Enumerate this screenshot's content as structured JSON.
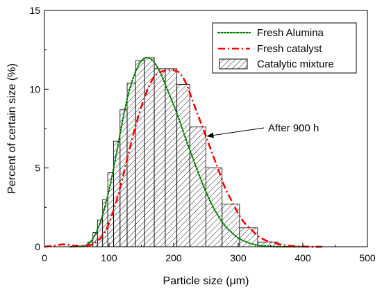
{
  "chart_data": {
    "type": "bar",
    "xlabel": "Particle size (μm)",
    "ylabel": "Percent of certain size (%)",
    "xlim": [
      0,
      500
    ],
    "ylim": [
      0,
      15
    ],
    "xticks": [
      0,
      100,
      200,
      300,
      400,
      500
    ],
    "yticks": [
      0,
      5,
      10,
      15
    ],
    "grid": false,
    "legend_position": "top-right",
    "bars": {
      "name": "Catalytic mixture",
      "pattern": "diagonal-hatch",
      "bins": [
        {
          "x0": 67,
          "x1": 75,
          "value": 0.3
        },
        {
          "x0": 75,
          "x1": 82,
          "value": 0.9
        },
        {
          "x0": 82,
          "x1": 90,
          "value": 1.7
        },
        {
          "x0": 90,
          "x1": 98,
          "value": 3.0
        },
        {
          "x0": 98,
          "x1": 107,
          "value": 4.7
        },
        {
          "x0": 107,
          "x1": 117,
          "value": 6.7
        },
        {
          "x0": 117,
          "x1": 128,
          "value": 8.7
        },
        {
          "x0": 128,
          "x1": 141,
          "value": 10.4
        },
        {
          "x0": 141,
          "x1": 155,
          "value": 11.8
        },
        {
          "x0": 155,
          "x1": 170,
          "value": 12.0
        },
        {
          "x0": 170,
          "x1": 187,
          "value": 11.3
        },
        {
          "x0": 187,
          "x1": 205,
          "value": 11.3
        },
        {
          "x0": 205,
          "x1": 225,
          "value": 10.3
        },
        {
          "x0": 225,
          "x1": 250,
          "value": 7.6
        },
        {
          "x0": 250,
          "x1": 275,
          "value": 5.0
        },
        {
          "x0": 275,
          "x1": 302,
          "value": 2.7
        },
        {
          "x0": 302,
          "x1": 330,
          "value": 1.2
        },
        {
          "x0": 330,
          "x1": 362,
          "value": 0.3
        }
      ]
    },
    "series": [
      {
        "name": "Fresh Alumina",
        "style": "dotted",
        "color": "#008000",
        "x": [
          40,
          60,
          70,
          80,
          90,
          100,
          110,
          120,
          130,
          140,
          150,
          160,
          170,
          180,
          190,
          200,
          210,
          220,
          230,
          240,
          250,
          260,
          270,
          280,
          290,
          300,
          310,
          320,
          330,
          340,
          350,
          360,
          370,
          380,
          390,
          400
        ],
        "y": [
          0.0,
          0.05,
          0.25,
          0.9,
          2.0,
          3.6,
          5.6,
          7.8,
          9.7,
          11.0,
          11.8,
          12.0,
          11.7,
          11.0,
          10.0,
          9.0,
          7.9,
          6.7,
          5.6,
          4.5,
          3.5,
          2.6,
          1.9,
          1.3,
          0.9,
          0.55,
          0.35,
          0.2,
          0.1,
          0.05,
          0.02,
          0.0,
          0.0,
          0.0,
          0.0,
          0.0
        ]
      },
      {
        "name": "Fresh catalyst",
        "style": "dash-dot",
        "color": "#ff0000",
        "x": [
          0,
          20,
          30,
          50,
          70,
          80,
          90,
          100,
          110,
          120,
          130,
          140,
          150,
          160,
          170,
          180,
          190,
          200,
          210,
          220,
          230,
          240,
          250,
          260,
          270,
          280,
          290,
          300,
          310,
          320,
          330,
          340,
          350,
          370,
          390,
          410,
          430
        ],
        "y": [
          0.0,
          0.1,
          0.15,
          0.05,
          0.1,
          0.3,
          0.7,
          1.5,
          2.7,
          4.2,
          5.9,
          7.5,
          8.9,
          10.0,
          10.8,
          11.1,
          11.2,
          11.2,
          11.0,
          10.3,
          9.2,
          8.1,
          7.0,
          5.9,
          4.8,
          3.7,
          2.9,
          2.1,
          1.5,
          1.1,
          0.7,
          0.45,
          0.3,
          0.1,
          0.03,
          0.0,
          0.0
        ]
      }
    ],
    "annotation": {
      "text": "After 900 h",
      "points_to": {
        "x": 250,
        "y": 7.0
      }
    }
  }
}
